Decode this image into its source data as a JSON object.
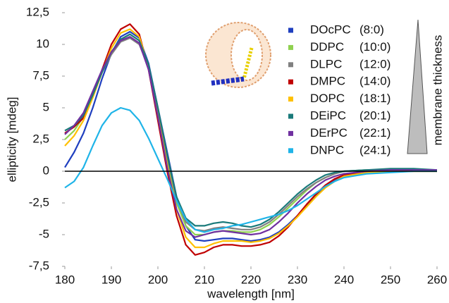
{
  "chart_data": {
    "type": "line",
    "xlabel": "wavelength [nm]",
    "ylabel": "ellipticity [mdeg]",
    "annotation": "membrane thickness",
    "xlim": [
      180,
      260
    ],
    "xticks": [
      180,
      190,
      200,
      210,
      220,
      230,
      240,
      250,
      260
    ],
    "ylim": [
      -7.5,
      12.5
    ],
    "yticks": [
      {
        "value": -7.5,
        "label": "-7,5"
      },
      -5,
      {
        "value": -2.5,
        "label": "-2,5"
      },
      0,
      {
        "value": 2.5,
        "label": "2,5"
      },
      5,
      {
        "value": 7.5,
        "label": "7,5"
      },
      10,
      {
        "value": 12.5,
        "label": "12,5"
      }
    ],
    "x": [
      180,
      182,
      184,
      186,
      188,
      190,
      192,
      194,
      196,
      198,
      200,
      202,
      204,
      206,
      208,
      210,
      212,
      214,
      216,
      218,
      220,
      222,
      224,
      226,
      228,
      230,
      232,
      234,
      236,
      238,
      240,
      245,
      250,
      255,
      260
    ],
    "series": [
      {
        "name": "DOcPC",
        "chain": "(8:0)",
        "color": "#1f3fbf",
        "values": [
          0.3,
          1.5,
          3.0,
          5.0,
          7.3,
          9.3,
          10.6,
          11.0,
          10.5,
          8.5,
          5.0,
          1.5,
          -2.0,
          -4.3,
          -5.4,
          -5.5,
          -5.4,
          -5.3,
          -5.3,
          -5.4,
          -5.5,
          -5.4,
          -5.2,
          -4.8,
          -4.2,
          -3.5,
          -2.7,
          -1.9,
          -1.2,
          -0.7,
          -0.4,
          -0.1,
          0.0,
          0.1,
          0.1
        ]
      },
      {
        "name": "DDPC",
        "chain": "(10:0)",
        "color": "#8fd14f",
        "values": [
          2.5,
          3.2,
          4.3,
          6.0,
          7.8,
          9.4,
          10.4,
          10.8,
          10.3,
          8.3,
          4.8,
          1.0,
          -2.5,
          -4.3,
          -5.0,
          -5.0,
          -4.8,
          -4.7,
          -4.7,
          -4.8,
          -4.8,
          -4.6,
          -4.2,
          -3.6,
          -2.9,
          -2.2,
          -1.5,
          -0.9,
          -0.5,
          -0.2,
          0.0,
          0.1,
          0.1,
          0.1,
          0.1
        ]
      },
      {
        "name": "DLPC",
        "chain": "(12:0)",
        "color": "#808080",
        "values": [
          3.0,
          3.5,
          4.3,
          6.0,
          7.8,
          9.2,
          10.2,
          10.5,
          10.0,
          8.2,
          4.8,
          1.2,
          -2.2,
          -4.0,
          -4.6,
          -4.7,
          -4.5,
          -4.4,
          -4.5,
          -4.6,
          -4.6,
          -4.4,
          -4.0,
          -3.4,
          -2.7,
          -2.0,
          -1.4,
          -0.9,
          -0.5,
          -0.2,
          0.0,
          0.1,
          0.1,
          0.1,
          0.0
        ]
      },
      {
        "name": "DMPC",
        "chain": "(14:0)",
        "color": "#c00000",
        "values": [
          3.0,
          3.5,
          4.2,
          6.0,
          8.0,
          10.0,
          11.2,
          11.6,
          10.8,
          8.0,
          4.0,
          0.0,
          -3.5,
          -5.8,
          -6.6,
          -6.4,
          -6.0,
          -5.8,
          -5.8,
          -5.9,
          -5.9,
          -5.8,
          -5.6,
          -5.1,
          -4.4,
          -3.5,
          -2.6,
          -1.8,
          -1.1,
          -0.6,
          -0.3,
          -0.1,
          0.0,
          0.0,
          0.0
        ]
      },
      {
        "name": "DOPC",
        "chain": "(18:1)",
        "color": "#ffc000",
        "values": [
          2.0,
          2.8,
          4.0,
          5.8,
          7.8,
          9.7,
          10.9,
          11.2,
          10.6,
          8.2,
          4.5,
          0.5,
          -3.0,
          -5.2,
          -6.0,
          -6.0,
          -5.7,
          -5.5,
          -5.5,
          -5.5,
          -5.6,
          -5.5,
          -5.3,
          -4.9,
          -4.3,
          -3.6,
          -2.8,
          -2.0,
          -1.3,
          -0.8,
          -0.4,
          -0.1,
          0.0,
          0.0,
          0.0
        ]
      },
      {
        "name": "DEiPC",
        "chain": "(20:1)",
        "color": "#1a7a7a",
        "values": [
          3.2,
          3.6,
          4.4,
          6.0,
          7.8,
          9.4,
          10.4,
          10.8,
          10.3,
          8.4,
          5.0,
          1.3,
          -2.0,
          -3.7,
          -4.3,
          -4.3,
          -4.1,
          -4.0,
          -4.1,
          -4.3,
          -4.4,
          -4.2,
          -3.8,
          -3.2,
          -2.5,
          -1.8,
          -1.2,
          -0.7,
          -0.3,
          -0.1,
          0.0,
          0.1,
          0.2,
          0.2,
          0.1
        ]
      },
      {
        "name": "DErPC",
        "chain": "(22:1)",
        "color": "#7030a0",
        "values": [
          2.9,
          3.6,
          4.6,
          6.3,
          8.0,
          9.4,
          10.3,
          10.6,
          10.1,
          8.0,
          4.3,
          0.3,
          -3.0,
          -4.7,
          -5.2,
          -5.0,
          -4.8,
          -4.7,
          -4.8,
          -4.9,
          -5.0,
          -4.9,
          -4.6,
          -4.0,
          -3.3,
          -2.5,
          -1.8,
          -1.2,
          -0.7,
          -0.4,
          -0.2,
          0.0,
          0.1,
          0.1,
          0.1
        ]
      },
      {
        "name": "DNPC",
        "chain": "(24:1)",
        "color": "#1fb4e8",
        "values": [
          -1.3,
          -0.8,
          0.3,
          2.0,
          3.6,
          4.6,
          5.0,
          4.8,
          4.0,
          2.6,
          1.0,
          -0.6,
          -2.3,
          -3.8,
          -4.6,
          -4.8,
          -4.6,
          -4.5,
          -4.3,
          -4.2,
          -4.0,
          -3.8,
          -3.6,
          -3.4,
          -3.1,
          -2.7,
          -2.2,
          -1.7,
          -1.2,
          -0.8,
          -0.5,
          -0.2,
          -0.1,
          0.0,
          0.0
        ]
      }
    ]
  }
}
